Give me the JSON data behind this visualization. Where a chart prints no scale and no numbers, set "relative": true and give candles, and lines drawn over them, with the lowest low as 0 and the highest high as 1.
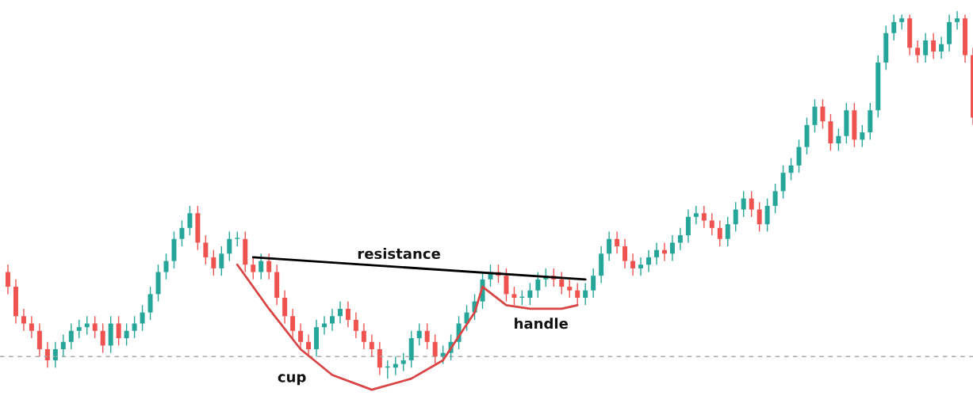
{
  "chart_data": {
    "type": "candlestick",
    "relative": true,
    "categories": [
      null,
      null,
      null,
      null,
      null,
      null,
      null,
      null,
      null,
      null,
      null,
      null,
      null,
      null,
      null,
      null,
      null,
      null,
      null,
      null,
      null,
      null,
      null,
      null,
      null,
      null,
      null,
      null,
      null,
      null,
      null,
      null,
      null,
      null,
      null,
      null,
      null,
      null,
      null,
      null,
      null,
      null,
      null,
      null,
      null,
      null,
      null,
      null,
      null,
      null,
      null,
      null,
      null,
      null,
      null,
      null,
      null,
      null,
      null,
      null,
      null,
      null,
      null,
      null,
      null,
      null,
      null,
      null,
      null,
      null,
      null,
      null,
      null,
      null,
      null,
      null,
      null,
      null,
      null,
      null,
      null,
      null,
      null,
      null,
      null,
      null,
      null,
      null,
      null,
      null,
      null,
      null,
      null,
      null,
      null,
      null,
      null,
      null,
      null,
      null,
      null,
      null,
      null,
      null,
      null,
      null,
      null,
      null,
      null,
      null,
      null,
      null,
      null,
      null,
      null,
      null,
      null,
      null,
      null,
      null,
      null,
      null,
      null
    ],
    "ohlc": [
      [
        0.29,
        0.31,
        0.23,
        0.25
      ],
      [
        0.25,
        0.27,
        0.15,
        0.17
      ],
      [
        0.17,
        0.19,
        0.13,
        0.15
      ],
      [
        0.15,
        0.17,
        0.11,
        0.13
      ],
      [
        0.13,
        0.15,
        0.06,
        0.08
      ],
      [
        0.08,
        0.1,
        0.03,
        0.05
      ],
      [
        0.05,
        0.1,
        0.03,
        0.08
      ],
      [
        0.08,
        0.12,
        0.06,
        0.1
      ],
      [
        0.1,
        0.15,
        0.08,
        0.13
      ],
      [
        0.13,
        0.16,
        0.11,
        0.14
      ],
      [
        0.14,
        0.17,
        0.12,
        0.15
      ],
      [
        0.15,
        0.17,
        0.11,
        0.13
      ],
      [
        0.13,
        0.15,
        0.07,
        0.09
      ],
      [
        0.09,
        0.17,
        0.07,
        0.15
      ],
      [
        0.15,
        0.17,
        0.09,
        0.11
      ],
      [
        0.11,
        0.15,
        0.09,
        0.13
      ],
      [
        0.13,
        0.17,
        0.11,
        0.15
      ],
      [
        0.15,
        0.2,
        0.13,
        0.18
      ],
      [
        0.18,
        0.25,
        0.16,
        0.23
      ],
      [
        0.23,
        0.31,
        0.21,
        0.29
      ],
      [
        0.29,
        0.34,
        0.27,
        0.32
      ],
      [
        0.32,
        0.4,
        0.3,
        0.38
      ],
      [
        0.38,
        0.43,
        0.36,
        0.41
      ],
      [
        0.41,
        0.47,
        0.39,
        0.45
      ],
      [
        0.45,
        0.47,
        0.35,
        0.37
      ],
      [
        0.37,
        0.39,
        0.31,
        0.33
      ],
      [
        0.33,
        0.35,
        0.28,
        0.3
      ],
      [
        0.3,
        0.36,
        0.28,
        0.34
      ],
      [
        0.34,
        0.4,
        0.32,
        0.38
      ],
      [
        0.38,
        0.4,
        0.36,
        0.38
      ],
      [
        0.38,
        0.4,
        0.29,
        0.31
      ],
      [
        0.31,
        0.33,
        0.27,
        0.29
      ],
      [
        0.29,
        0.34,
        0.27,
        0.32
      ],
      [
        0.32,
        0.34,
        0.27,
        0.29
      ],
      [
        0.29,
        0.31,
        0.2,
        0.22
      ],
      [
        0.22,
        0.24,
        0.15,
        0.17
      ],
      [
        0.17,
        0.19,
        0.11,
        0.13
      ],
      [
        0.13,
        0.15,
        0.08,
        0.1
      ],
      [
        0.1,
        0.12,
        0.06,
        0.08
      ],
      [
        0.08,
        0.16,
        0.06,
        0.14
      ],
      [
        0.14,
        0.17,
        0.12,
        0.15
      ],
      [
        0.15,
        0.19,
        0.13,
        0.17
      ],
      [
        0.17,
        0.21,
        0.15,
        0.19
      ],
      [
        0.19,
        0.21,
        0.14,
        0.16
      ],
      [
        0.16,
        0.18,
        0.11,
        0.13
      ],
      [
        0.13,
        0.15,
        0.08,
        0.1
      ],
      [
        0.1,
        0.12,
        0.06,
        0.08
      ],
      [
        0.08,
        0.1,
        0.01,
        0.03
      ],
      [
        0.03,
        0.05,
        0.0,
        0.03
      ],
      [
        0.03,
        0.06,
        0.01,
        0.04
      ],
      [
        0.04,
        0.07,
        0.02,
        0.05
      ],
      [
        0.05,
        0.13,
        0.03,
        0.11
      ],
      [
        0.11,
        0.15,
        0.09,
        0.13
      ],
      [
        0.13,
        0.15,
        0.08,
        0.1
      ],
      [
        0.1,
        0.12,
        0.04,
        0.06
      ],
      [
        0.06,
        0.09,
        0.04,
        0.07
      ],
      [
        0.07,
        0.12,
        0.05,
        0.1
      ],
      [
        0.1,
        0.17,
        0.08,
        0.15
      ],
      [
        0.15,
        0.2,
        0.13,
        0.18
      ],
      [
        0.18,
        0.23,
        0.16,
        0.21
      ],
      [
        0.21,
        0.29,
        0.19,
        0.27
      ],
      [
        0.27,
        0.31,
        0.25,
        0.29
      ],
      [
        0.29,
        0.31,
        0.26,
        0.28
      ],
      [
        0.28,
        0.3,
        0.21,
        0.23
      ],
      [
        0.23,
        0.25,
        0.2,
        0.22
      ],
      [
        0.22,
        0.24,
        0.2,
        0.22
      ],
      [
        0.22,
        0.26,
        0.2,
        0.24
      ],
      [
        0.24,
        0.29,
        0.22,
        0.27
      ],
      [
        0.27,
        0.3,
        0.25,
        0.28
      ],
      [
        0.28,
        0.3,
        0.25,
        0.27
      ],
      [
        0.27,
        0.29,
        0.23,
        0.25
      ],
      [
        0.25,
        0.27,
        0.22,
        0.24
      ],
      [
        0.24,
        0.26,
        0.2,
        0.22
      ],
      [
        0.22,
        0.26,
        0.2,
        0.24
      ],
      [
        0.24,
        0.3,
        0.22,
        0.28
      ],
      [
        0.28,
        0.36,
        0.26,
        0.34
      ],
      [
        0.34,
        0.4,
        0.32,
        0.38
      ],
      [
        0.38,
        0.4,
        0.34,
        0.36
      ],
      [
        0.36,
        0.38,
        0.3,
        0.32
      ],
      [
        0.32,
        0.34,
        0.28,
        0.3
      ],
      [
        0.3,
        0.33,
        0.28,
        0.31
      ],
      [
        0.31,
        0.35,
        0.29,
        0.33
      ],
      [
        0.33,
        0.37,
        0.31,
        0.35
      ],
      [
        0.35,
        0.37,
        0.32,
        0.34
      ],
      [
        0.34,
        0.39,
        0.32,
        0.37
      ],
      [
        0.37,
        0.41,
        0.35,
        0.39
      ],
      [
        0.39,
        0.46,
        0.37,
        0.44
      ],
      [
        0.44,
        0.47,
        0.42,
        0.45
      ],
      [
        0.45,
        0.47,
        0.41,
        0.43
      ],
      [
        0.43,
        0.45,
        0.39,
        0.41
      ],
      [
        0.41,
        0.43,
        0.36,
        0.38
      ],
      [
        0.38,
        0.44,
        0.36,
        0.42
      ],
      [
        0.42,
        0.48,
        0.4,
        0.46
      ],
      [
        0.46,
        0.51,
        0.44,
        0.49
      ],
      [
        0.49,
        0.51,
        0.44,
        0.46
      ],
      [
        0.46,
        0.48,
        0.4,
        0.42
      ],
      [
        0.42,
        0.49,
        0.4,
        0.47
      ],
      [
        0.47,
        0.53,
        0.45,
        0.51
      ],
      [
        0.51,
        0.58,
        0.49,
        0.56
      ],
      [
        0.56,
        0.6,
        0.54,
        0.58
      ],
      [
        0.58,
        0.65,
        0.56,
        0.63
      ],
      [
        0.63,
        0.71,
        0.61,
        0.69
      ],
      [
        0.69,
        0.76,
        0.67,
        0.74
      ],
      [
        0.74,
        0.76,
        0.68,
        0.7
      ],
      [
        0.7,
        0.72,
        0.62,
        0.64
      ],
      [
        0.64,
        0.68,
        0.62,
        0.66
      ],
      [
        0.66,
        0.75,
        0.64,
        0.73
      ],
      [
        0.73,
        0.75,
        0.63,
        0.65
      ],
      [
        0.65,
        0.69,
        0.63,
        0.67
      ],
      [
        0.67,
        0.75,
        0.65,
        0.73
      ],
      [
        0.73,
        0.88,
        0.71,
        0.86
      ],
      [
        0.86,
        0.96,
        0.84,
        0.94
      ],
      [
        0.94,
        0.99,
        0.92,
        0.97
      ],
      [
        0.97,
        0.99,
        0.95,
        0.98
      ],
      [
        0.98,
        0.99,
        0.88,
        0.9
      ],
      [
        0.9,
        0.92,
        0.86,
        0.88
      ],
      [
        0.88,
        0.94,
        0.86,
        0.92
      ],
      [
        0.92,
        0.94,
        0.87,
        0.89
      ],
      [
        0.89,
        0.93,
        0.87,
        0.91
      ],
      [
        0.91,
        0.99,
        0.89,
        0.97
      ],
      [
        0.97,
        1.0,
        0.95,
        0.98
      ],
      [
        0.98,
        0.99,
        0.86,
        0.88
      ],
      [
        0.88,
        0.9,
        0.69,
        0.71
      ]
    ],
    "series": [
      {
        "type": "line",
        "color": "#000000",
        "values": [
          null,
          null,
          null,
          null,
          null,
          null,
          null,
          null,
          null,
          null,
          null,
          null,
          null,
          null,
          null,
          null,
          null,
          null,
          null,
          null,
          null,
          null,
          null,
          null,
          null,
          null,
          null,
          null,
          null,
          null,
          null,
          0.33,
          null,
          null,
          null,
          null,
          null,
          null,
          null,
          null,
          null,
          null,
          null,
          null,
          null,
          null,
          null,
          null,
          null,
          null,
          null,
          null,
          null,
          null,
          null,
          null,
          null,
          null,
          null,
          null,
          null,
          null,
          null,
          null,
          null,
          null,
          null,
          null,
          null,
          null,
          null,
          null,
          null,
          0.27,
          null,
          null,
          null,
          null,
          null,
          null,
          null,
          null,
          null,
          null,
          null,
          null,
          null,
          null,
          null,
          null,
          null,
          null,
          null,
          null,
          null,
          null,
          null,
          null,
          null,
          null,
          null,
          null,
          null,
          null,
          null,
          null,
          null,
          null,
          null,
          null,
          null,
          null,
          null,
          null,
          null,
          null,
          null,
          null,
          null,
          null,
          null,
          null,
          null
        ]
      },
      {
        "type": "line",
        "color": "#d94545",
        "values": [
          null,
          null,
          null,
          null,
          null,
          null,
          null,
          null,
          null,
          null,
          null,
          null,
          null,
          null,
          null,
          null,
          null,
          null,
          null,
          null,
          null,
          null,
          null,
          null,
          null,
          null,
          null,
          null,
          null,
          0.31,
          null,
          null,
          null,
          0.19,
          null,
          null,
          null,
          0.08,
          null,
          null,
          null,
          0.01,
          null,
          null,
          null,
          null,
          -0.03,
          null,
          null,
          null,
          null,
          0.0,
          null,
          null,
          null,
          0.05,
          null,
          null,
          null,
          0.18,
          0.25,
          null,
          null,
          null,
          null,
          null,
          null,
          null,
          null,
          null,
          null,
          null,
          null,
          null,
          null,
          null,
          null,
          null,
          null,
          null,
          null,
          null,
          null,
          null,
          null,
          null,
          null,
          null,
          null,
          null,
          null,
          null,
          null,
          null,
          null,
          null,
          null,
          null,
          null,
          null,
          null,
          null,
          null,
          null,
          null,
          null,
          null,
          null,
          null,
          null,
          null,
          null,
          null,
          null,
          null,
          null,
          null,
          null,
          null,
          null,
          null,
          null,
          null
        ]
      },
      {
        "type": "line",
        "color": "#d94545",
        "values": [
          null,
          null,
          null,
          null,
          null,
          null,
          null,
          null,
          null,
          null,
          null,
          null,
          null,
          null,
          null,
          null,
          null,
          null,
          null,
          null,
          null,
          null,
          null,
          null,
          null,
          null,
          null,
          null,
          null,
          null,
          null,
          null,
          null,
          null,
          null,
          null,
          null,
          null,
          null,
          null,
          null,
          null,
          null,
          null,
          null,
          null,
          null,
          null,
          null,
          null,
          null,
          null,
          null,
          null,
          null,
          null,
          null,
          null,
          null,
          null,
          0.25,
          null,
          null,
          0.2,
          null,
          null,
          0.19,
          null,
          null,
          null,
          0.19,
          null,
          0.2,
          null,
          null,
          null,
          null,
          null,
          null,
          null,
          null,
          null,
          null,
          null,
          null,
          null,
          null,
          null,
          null,
          null,
          null,
          null,
          null,
          null,
          null,
          null,
          null,
          null,
          null,
          null,
          null,
          null,
          null,
          null,
          null,
          null,
          null,
          null,
          null,
          null,
          null,
          null,
          null,
          null,
          null,
          null,
          null,
          null,
          null,
          null,
          null,
          null,
          null
        ]
      }
    ],
    "ref_lines": [
      {
        "axis": "y",
        "value": 0.06,
        "color": "#aaaaaa",
        "line_style": "dashed"
      }
    ],
    "annotations": [
      "resistance",
      "cup",
      "handle"
    ]
  }
}
